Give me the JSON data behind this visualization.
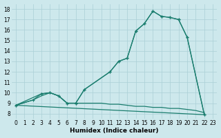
{
  "bg_color": "#cde8ec",
  "grid_color": "#aacfd6",
  "line_color": "#1a7d6e",
  "xlabel": "Humidex (Indice chaleur)",
  "xlim": [
    -0.5,
    23.5
  ],
  "ylim": [
    7.5,
    18.5
  ],
  "xticks": [
    0,
    1,
    2,
    3,
    4,
    5,
    6,
    7,
    8,
    9,
    10,
    11,
    12,
    13,
    14,
    15,
    16,
    17,
    18,
    19,
    20,
    21,
    22,
    23
  ],
  "yticks": [
    8,
    9,
    10,
    11,
    12,
    13,
    14,
    15,
    16,
    17,
    18
  ],
  "s1x": [
    0,
    2,
    3,
    4,
    5,
    6,
    7,
    8,
    11,
    12,
    13,
    14,
    15,
    16,
    17,
    18,
    19,
    20,
    22
  ],
  "s1y": [
    8.8,
    9.3,
    9.9,
    10.0,
    9.7,
    9.0,
    9.0,
    10.3,
    12.0,
    13.0,
    13.3,
    15.9,
    16.6,
    17.8,
    17.3,
    17.2,
    17.0,
    15.3,
    7.9
  ],
  "s2x": [
    0,
    3,
    4,
    5,
    6,
    7,
    8,
    11,
    12,
    13,
    14,
    15,
    16,
    17,
    18,
    19,
    20,
    22
  ],
  "s2y": [
    8.8,
    9.9,
    10.0,
    9.7,
    9.0,
    9.0,
    10.3,
    12.0,
    13.0,
    13.3,
    15.9,
    16.6,
    17.8,
    17.3,
    17.2,
    17.0,
    15.3,
    7.9
  ],
  "s3x": [
    0,
    22
  ],
  "s3y": [
    8.8,
    7.9
  ],
  "s4x": [
    0,
    2,
    3,
    4,
    5,
    6,
    7,
    8,
    10,
    11,
    12,
    13,
    14,
    15,
    16,
    17,
    18,
    19,
    20,
    21,
    22
  ],
  "s4y": [
    8.8,
    9.3,
    9.7,
    10.0,
    9.7,
    9.0,
    9.0,
    9.0,
    9.0,
    8.9,
    8.9,
    8.8,
    8.7,
    8.7,
    8.6,
    8.6,
    8.5,
    8.5,
    8.4,
    8.3,
    8.1
  ]
}
